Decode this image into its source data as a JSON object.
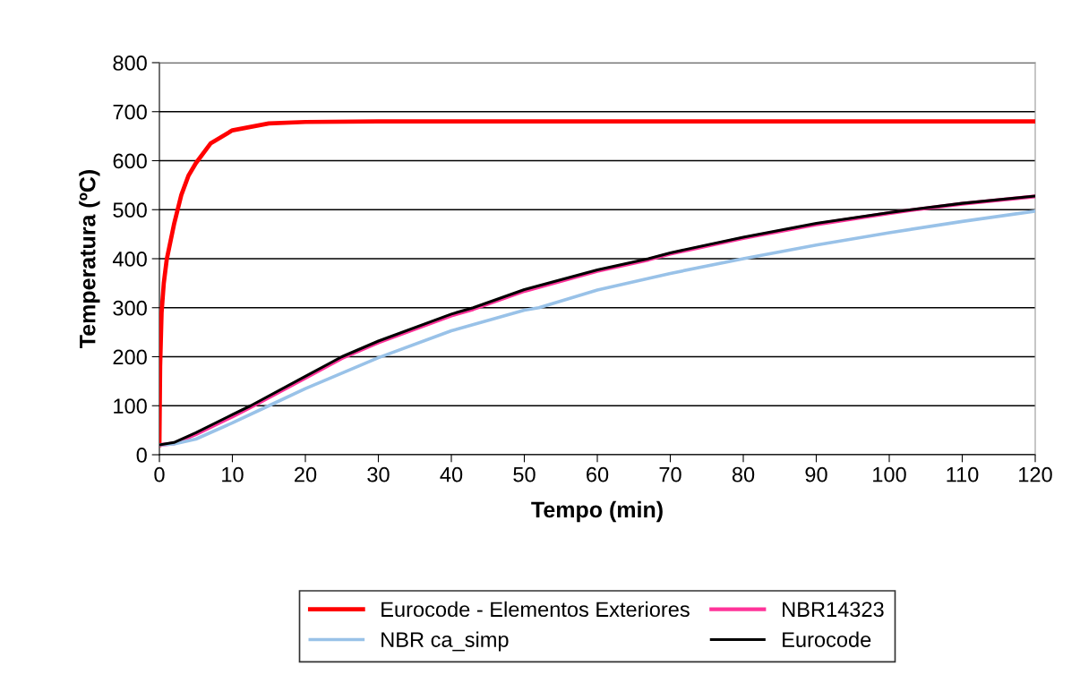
{
  "chart_data": {
    "type": "line",
    "xlabel": "Tempo (min)",
    "ylabel": "Temperatura (ºC)",
    "xlim": [
      0,
      120
    ],
    "xticks": [
      0,
      10,
      20,
      30,
      40,
      50,
      60,
      70,
      80,
      90,
      100,
      110,
      120
    ],
    "ylim": [
      0,
      800
    ],
    "yticks": [
      0,
      100,
      200,
      300,
      400,
      500,
      600,
      700,
      800
    ],
    "grid": "y",
    "legend": "bottom",
    "line_style": "solid",
    "marker": "none",
    "series": [
      {
        "name": "Eurocode - Elementos Exteriores",
        "color": "#ff0000",
        "x": [
          0,
          0.1,
          0.3,
          0.6,
          1,
          2,
          3,
          4,
          5,
          7,
          10,
          15,
          20,
          30,
          60,
          90,
          120
        ],
        "values": [
          20,
          180,
          290,
          350,
          398,
          470,
          530,
          570,
          595,
          635,
          662,
          676,
          679,
          680,
          680,
          680,
          680
        ]
      },
      {
        "name": "NBR14323",
        "color": "#ff3399",
        "x": [
          0,
          2,
          5,
          10,
          12.5,
          20,
          25,
          30,
          40,
          43,
          50,
          60,
          67,
          70,
          80,
          90,
          100,
          103,
          110,
          120
        ],
        "values": [
          20,
          23,
          42,
          78,
          97,
          157,
          197,
          229,
          284,
          297,
          334,
          375,
          398,
          410,
          442,
          470,
          493,
          499,
          512,
          527
        ]
      },
      {
        "name": "NBR ca_simp",
        "color": "#99c2e8",
        "x": [
          0,
          2,
          5,
          10,
          15,
          20,
          30,
          40,
          50,
          52,
          60,
          70,
          80,
          90,
          100,
          110,
          120
        ],
        "values": [
          20,
          22,
          32,
          65,
          100,
          135,
          198,
          253,
          295,
          300,
          336,
          370,
          400,
          428,
          453,
          476,
          497
        ]
      },
      {
        "name": "Eurocode",
        "color": "#000000",
        "x": [
          0,
          2,
          5,
          10,
          12.5,
          20,
          25,
          30,
          40,
          43,
          50,
          60,
          67,
          70,
          80,
          90,
          100,
          103,
          110,
          120
        ],
        "values": [
          20,
          25,
          45,
          82,
          100,
          160,
          200,
          232,
          287,
          300,
          337,
          377,
          400,
          412,
          444,
          472,
          494,
          500,
          513,
          528
        ]
      }
    ]
  }
}
